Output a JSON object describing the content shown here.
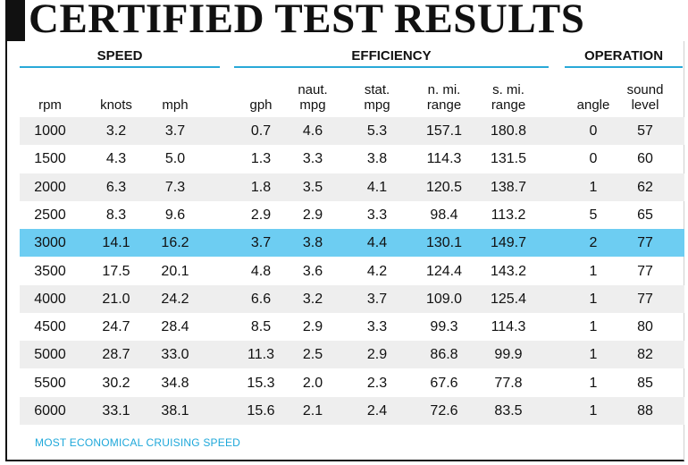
{
  "title": "CERTIFIED TEST RESULTS",
  "groups": [
    {
      "label": "SPEED"
    },
    {
      "label": "EFFICIENCY"
    },
    {
      "label": "OPERATION"
    }
  ],
  "columns": [
    {
      "label": "rpm"
    },
    {
      "label": "knots"
    },
    {
      "label": "mph"
    },
    {
      "label": "gph"
    },
    {
      "label": "naut.\nmpg"
    },
    {
      "label": "stat.\nmpg"
    },
    {
      "label": "n. mi.\nrange"
    },
    {
      "label": "s. mi.\nrange"
    },
    {
      "label": "angle"
    },
    {
      "label": "sound\nlevel"
    }
  ],
  "rows": [
    [
      "1000",
      "3.2",
      "3.7",
      "0.7",
      "4.6",
      "5.3",
      "157.1",
      "180.8",
      "0",
      "57"
    ],
    [
      "1500",
      "4.3",
      "5.0",
      "1.3",
      "3.3",
      "3.8",
      "114.3",
      "131.5",
      "0",
      "60"
    ],
    [
      "2000",
      "6.3",
      "7.3",
      "1.8",
      "3.5",
      "4.1",
      "120.5",
      "138.7",
      "1",
      "62"
    ],
    [
      "2500",
      "8.3",
      "9.6",
      "2.9",
      "2.9",
      "3.3",
      "98.4",
      "113.2",
      "5",
      "65"
    ],
    [
      "3000",
      "14.1",
      "16.2",
      "3.7",
      "3.8",
      "4.4",
      "130.1",
      "149.7",
      "2",
      "77"
    ],
    [
      "3500",
      "17.5",
      "20.1",
      "4.8",
      "3.6",
      "4.2",
      "124.4",
      "143.2",
      "1",
      "77"
    ],
    [
      "4000",
      "21.0",
      "24.2",
      "6.6",
      "3.2",
      "3.7",
      "109.0",
      "125.4",
      "1",
      "77"
    ],
    [
      "4500",
      "24.7",
      "28.4",
      "8.5",
      "2.9",
      "3.3",
      "99.3",
      "114.3",
      "1",
      "80"
    ],
    [
      "5000",
      "28.7",
      "33.0",
      "11.3",
      "2.5",
      "2.9",
      "86.8",
      "99.9",
      "1",
      "82"
    ],
    [
      "5500",
      "30.2",
      "34.8",
      "15.3",
      "2.0",
      "2.3",
      "67.6",
      "77.8",
      "1",
      "85"
    ],
    [
      "6000",
      "33.1",
      "38.1",
      "15.6",
      "2.1",
      "2.4",
      "72.6",
      "83.5",
      "1",
      "88"
    ]
  ],
  "highlight_row_rpm": "3000",
  "footnote": "MOST ECONOMICAL CRUISING SPEED",
  "colors": {
    "accent": "#29a9d8",
    "highlight": "#6dcdf2",
    "alt_row": "#eeeeee",
    "text": "#111111"
  }
}
